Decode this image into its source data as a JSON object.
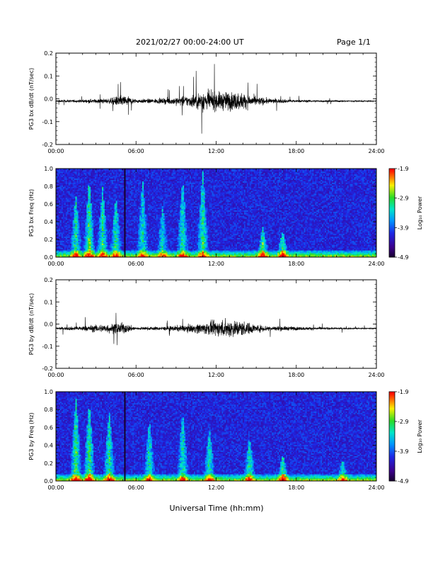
{
  "header": {
    "date_range": "2021/02/27  00:00-24:00 UT",
    "page": "Page 1/1"
  },
  "xlabel": "Universal Time (hh:mm)",
  "colorbar": {
    "label": "Log₁₀ Power",
    "tick_labels": [
      "-1.9",
      "-2.9",
      "-3.9",
      "-4.9"
    ],
    "range": [
      -4.9,
      -1.9
    ]
  },
  "chart_data": [
    {
      "type": "line",
      "panel": "bx-time",
      "ylabel": "PG3 bx dB/dt (nT/sec)",
      "ylim": [
        -0.2,
        0.2
      ],
      "yticks": [
        "0.2",
        "0.1",
        "0.0",
        "-0.1",
        "-0.2"
      ],
      "xlim": [
        0,
        24
      ],
      "xticks": [
        "00:00",
        "06:00",
        "12:00",
        "18:00",
        "24:00"
      ],
      "baseline": -0.01,
      "activity_envelope": [
        {
          "hour": 0,
          "amp": 0.008
        },
        {
          "hour": 2,
          "amp": 0.012
        },
        {
          "hour": 4,
          "amp": 0.02
        },
        {
          "hour": 5,
          "amp": 0.05
        },
        {
          "hour": 6,
          "amp": 0.015
        },
        {
          "hour": 8,
          "amp": 0.02
        },
        {
          "hour": 10,
          "amp": 0.045
        },
        {
          "hour": 11,
          "amp": 0.08
        },
        {
          "hour": 12,
          "amp": 0.07
        },
        {
          "hour": 13,
          "amp": 0.075
        },
        {
          "hour": 14,
          "amp": 0.065
        },
        {
          "hour": 15,
          "amp": 0.035
        },
        {
          "hour": 16,
          "amp": 0.02
        },
        {
          "hour": 18,
          "amp": 0.01
        },
        {
          "hour": 20,
          "amp": 0.008
        },
        {
          "hour": 22,
          "amp": 0.006
        },
        {
          "hour": 24,
          "amp": 0.005
        }
      ]
    },
    {
      "type": "heatmap",
      "panel": "bx-spectrogram",
      "ylabel": "PG3 bx Freq (Hz)",
      "ylim": [
        0,
        1.0
      ],
      "yticks": [
        "1.0",
        "0.8",
        "0.6",
        "0.4",
        "0.2",
        "0.0"
      ],
      "xlim": [
        0,
        24
      ],
      "xticks": [
        "00:00",
        "06:00",
        "12:00",
        "18:00",
        "24:00"
      ],
      "data_gap_hour": 5.2,
      "features": [
        {
          "hour": 1.5,
          "fmax": 0.7,
          "level": 0.45
        },
        {
          "hour": 2.5,
          "fmax": 0.9,
          "level": 0.5
        },
        {
          "hour": 3.5,
          "fmax": 0.8,
          "level": 0.45
        },
        {
          "hour": 4.5,
          "fmax": 0.7,
          "level": 0.45
        },
        {
          "hour": 6.5,
          "fmax": 0.9,
          "level": 0.4
        },
        {
          "hour": 8.0,
          "fmax": 0.6,
          "level": 0.35
        },
        {
          "hour": 9.5,
          "fmax": 0.9,
          "level": 0.4
        },
        {
          "hour": 11.0,
          "fmax": 1.0,
          "level": 0.45
        },
        {
          "hour": 15.5,
          "fmax": 0.35,
          "level": 0.5
        },
        {
          "hour": 17.0,
          "fmax": 0.3,
          "level": 0.5
        }
      ]
    },
    {
      "type": "line",
      "panel": "by-time",
      "ylabel": "PG3 by dB/dt (nT/sec)",
      "ylim": [
        -0.2,
        0.2
      ],
      "yticks": [
        "0.2",
        "0.1",
        "0.0",
        "-0.1",
        "-0.2"
      ],
      "xlim": [
        0,
        24
      ],
      "xticks": [
        "00:00",
        "06:00",
        "12:00",
        "18:00",
        "24:00"
      ],
      "baseline": -0.02,
      "activity_envelope": [
        {
          "hour": 0,
          "amp": 0.008
        },
        {
          "hour": 2,
          "amp": 0.02
        },
        {
          "hour": 3,
          "amp": 0.03
        },
        {
          "hour": 5,
          "amp": 0.045
        },
        {
          "hour": 6,
          "amp": 0.012
        },
        {
          "hour": 8,
          "amp": 0.015
        },
        {
          "hour": 10,
          "amp": 0.03
        },
        {
          "hour": 12,
          "amp": 0.06
        },
        {
          "hour": 13,
          "amp": 0.075
        },
        {
          "hour": 14,
          "amp": 0.06
        },
        {
          "hour": 15,
          "amp": 0.03
        },
        {
          "hour": 17,
          "amp": 0.018
        },
        {
          "hour": 19,
          "amp": 0.012
        },
        {
          "hour": 21,
          "amp": 0.008
        },
        {
          "hour": 24,
          "amp": 0.005
        }
      ]
    },
    {
      "type": "heatmap",
      "panel": "by-spectrogram",
      "ylabel": "PG3 by Freq (Hz)",
      "ylim": [
        0,
        1.0
      ],
      "yticks": [
        "1.0",
        "0.8",
        "0.6",
        "0.4",
        "0.2",
        "0.0"
      ],
      "xlim": [
        0,
        24
      ],
      "xticks": [
        "00:00",
        "06:00",
        "12:00",
        "18:00",
        "24:00"
      ],
      "data_gap_hour": 5.2,
      "features": [
        {
          "hour": 1.5,
          "fmax": 0.95,
          "level": 0.5
        },
        {
          "hour": 2.5,
          "fmax": 0.9,
          "level": 0.5
        },
        {
          "hour": 4.0,
          "fmax": 0.8,
          "level": 0.45
        },
        {
          "hour": 7.0,
          "fmax": 0.7,
          "level": 0.4
        },
        {
          "hour": 9.5,
          "fmax": 0.8,
          "level": 0.4
        },
        {
          "hour": 11.5,
          "fmax": 0.6,
          "level": 0.4
        },
        {
          "hour": 14.5,
          "fmax": 0.5,
          "level": 0.45
        },
        {
          "hour": 17.0,
          "fmax": 0.3,
          "level": 0.5
        },
        {
          "hour": 21.5,
          "fmax": 0.25,
          "level": 0.4
        }
      ]
    }
  ]
}
